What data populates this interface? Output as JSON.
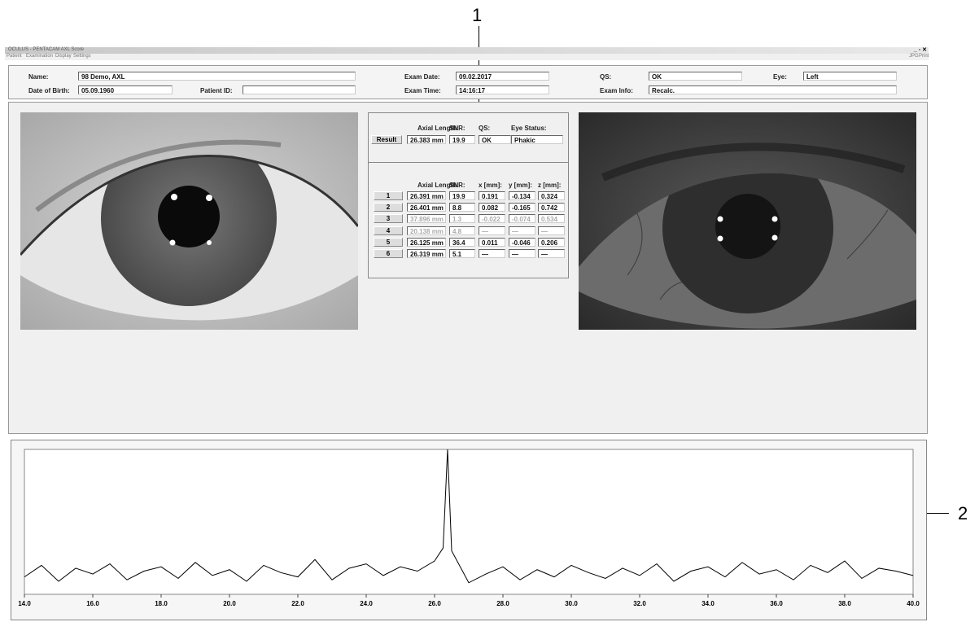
{
  "window": {
    "title": "OCULUS - PENTACAM AXL Score",
    "menu": [
      "Patient",
      "Examination",
      "Display",
      "Settings"
    ],
    "tools": [
      "JPG",
      "Print"
    ]
  },
  "header": {
    "name_label": "Name:",
    "name": "98 Demo, AXL",
    "dob_label": "Date of Birth:",
    "dob": "05.09.1960",
    "patient_id_label": "Patient ID:",
    "exam_date_label": "Exam Date:",
    "exam_date": "09.02.2017",
    "exam_time_label": "Exam Time:",
    "exam_time": "14:16:17",
    "qs_label": "QS:",
    "qs": "OK",
    "eye_label": "Eye:",
    "eye": "Left",
    "exam_info_label": "Exam Info:",
    "exam_info": "Recalc."
  },
  "result": {
    "headers": [
      "Axial Length:",
      "SNR:",
      "QS:",
      "Eye Status:"
    ],
    "button": "Result",
    "values": [
      "26.383 mm",
      "19.9",
      "OK",
      "Phakic"
    ]
  },
  "measurements": {
    "headers": [
      "Axial Length:",
      "SNR:",
      "x [mm]:",
      "y [mm]:",
      "z [mm]:"
    ],
    "rows": [
      {
        "button": "1",
        "cells": [
          "26.391 mm",
          "19.9",
          "0.191",
          "-0.134",
          "0.324"
        ],
        "excluded": false
      },
      {
        "button": "2",
        "cells": [
          "26.401 mm",
          "8.8",
          "0.082",
          "-0.165",
          "0.742"
        ],
        "excluded": false
      },
      {
        "button": "3",
        "cells": [
          "37.896 mm",
          "1.3",
          "-0.022",
          "-0.074",
          "0.534"
        ],
        "excluded": true
      },
      {
        "button": "4",
        "cells": [
          "20.138 mm",
          "4.8",
          "—",
          "—",
          "—"
        ],
        "excluded": true
      },
      {
        "button": "5",
        "cells": [
          "26.125 mm",
          "36.4",
          "0.011",
          "-0.046",
          "0.206"
        ],
        "excluded": false
      },
      {
        "button": "6",
        "cells": [
          "26.319 mm",
          "5.1",
          "—",
          "—",
          "—"
        ],
        "excluded": false
      }
    ]
  },
  "callouts": [
    "1",
    "2"
  ],
  "chart_data": {
    "type": "line",
    "color": "#000000",
    "x": [
      14.0,
      14.5,
      15.0,
      15.5,
      16.0,
      16.5,
      17.0,
      17.5,
      18.0,
      18.5,
      19.0,
      19.5,
      20.0,
      20.5,
      21.0,
      21.5,
      22.0,
      22.5,
      23.0,
      23.5,
      24.0,
      24.5,
      25.0,
      25.5,
      26.0,
      26.25,
      26.38,
      26.5,
      27.0,
      27.5,
      28.0,
      28.5,
      29.0,
      29.5,
      30.0,
      30.5,
      31.0,
      31.5,
      32.0,
      32.5,
      33.0,
      33.5,
      34.0,
      34.5,
      35.0,
      35.5,
      36.0,
      36.5,
      37.0,
      37.5,
      38.0,
      38.5,
      39.0,
      39.5,
      40.0
    ],
    "values": [
      12,
      20,
      9,
      18,
      14,
      21,
      10,
      16,
      19,
      11,
      22,
      13,
      17,
      9,
      20,
      15,
      12,
      24,
      10,
      18,
      21,
      13,
      19,
      16,
      23,
      32,
      100,
      30,
      8,
      14,
      19,
      10,
      17,
      12,
      20,
      15,
      11,
      18,
      13,
      21,
      9,
      16,
      19,
      12,
      22,
      14,
      17,
      10,
      20,
      15,
      23,
      11,
      18,
      16,
      13
    ],
    "xlim": [
      14.0,
      40.0
    ],
    "ylim": [
      0,
      100
    ],
    "xticks": [
      {
        "value": 14,
        "label": "14.0"
      },
      {
        "value": 16,
        "label": "16.0"
      },
      {
        "value": 18,
        "label": "18.0"
      },
      {
        "value": 20,
        "label": "20.0"
      },
      {
        "value": 22,
        "label": "22.0"
      },
      {
        "value": 24,
        "label": "24.0"
      },
      {
        "value": 26,
        "label": "26.0"
      },
      {
        "value": 28,
        "label": "28.0"
      },
      {
        "value": 30,
        "label": "30.0"
      },
      {
        "value": 32,
        "label": "32.0"
      },
      {
        "value": 34,
        "label": "34.0"
      },
      {
        "value": 36,
        "label": "36.0"
      },
      {
        "value": 38,
        "label": "38.0"
      },
      {
        "value": 40,
        "label": "40.0"
      }
    ]
  }
}
